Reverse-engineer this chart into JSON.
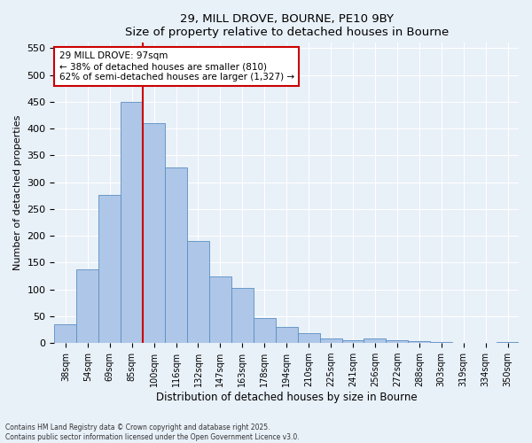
{
  "title1": "29, MILL DROVE, BOURNE, PE10 9BY",
  "title2": "Size of property relative to detached houses in Bourne",
  "xlabel": "Distribution of detached houses by size in Bourne",
  "ylabel": "Number of detached properties",
  "categories": [
    "38sqm",
    "54sqm",
    "69sqm",
    "85sqm",
    "100sqm",
    "116sqm",
    "132sqm",
    "147sqm",
    "163sqm",
    "178sqm",
    "194sqm",
    "210sqm",
    "225sqm",
    "241sqm",
    "256sqm",
    "272sqm",
    "288sqm",
    "303sqm",
    "319sqm",
    "334sqm",
    "350sqm"
  ],
  "values": [
    35,
    137,
    277,
    450,
    410,
    328,
    190,
    125,
    102,
    47,
    30,
    18,
    8,
    5,
    9,
    5,
    3,
    2,
    1,
    1,
    2
  ],
  "bar_color": "#aec6e8",
  "bar_edge_color": "#5a8fc2",
  "vline_color": "#cc0000",
  "annotation_text": "29 MILL DROVE: 97sqm\n← 38% of detached houses are smaller (810)\n62% of semi-detached houses are larger (1,327) →",
  "annotation_box_facecolor": "#ffffff",
  "annotation_box_edge": "#cc0000",
  "ylim": [
    0,
    560
  ],
  "yticks": [
    0,
    50,
    100,
    150,
    200,
    250,
    300,
    350,
    400,
    450,
    500,
    550
  ],
  "background_color": "#e8f0f8",
  "grid_color": "#ffffff",
  "footer": "Contains HM Land Registry data © Crown copyright and database right 2025.\nContains public sector information licensed under the Open Government Licence v3.0."
}
